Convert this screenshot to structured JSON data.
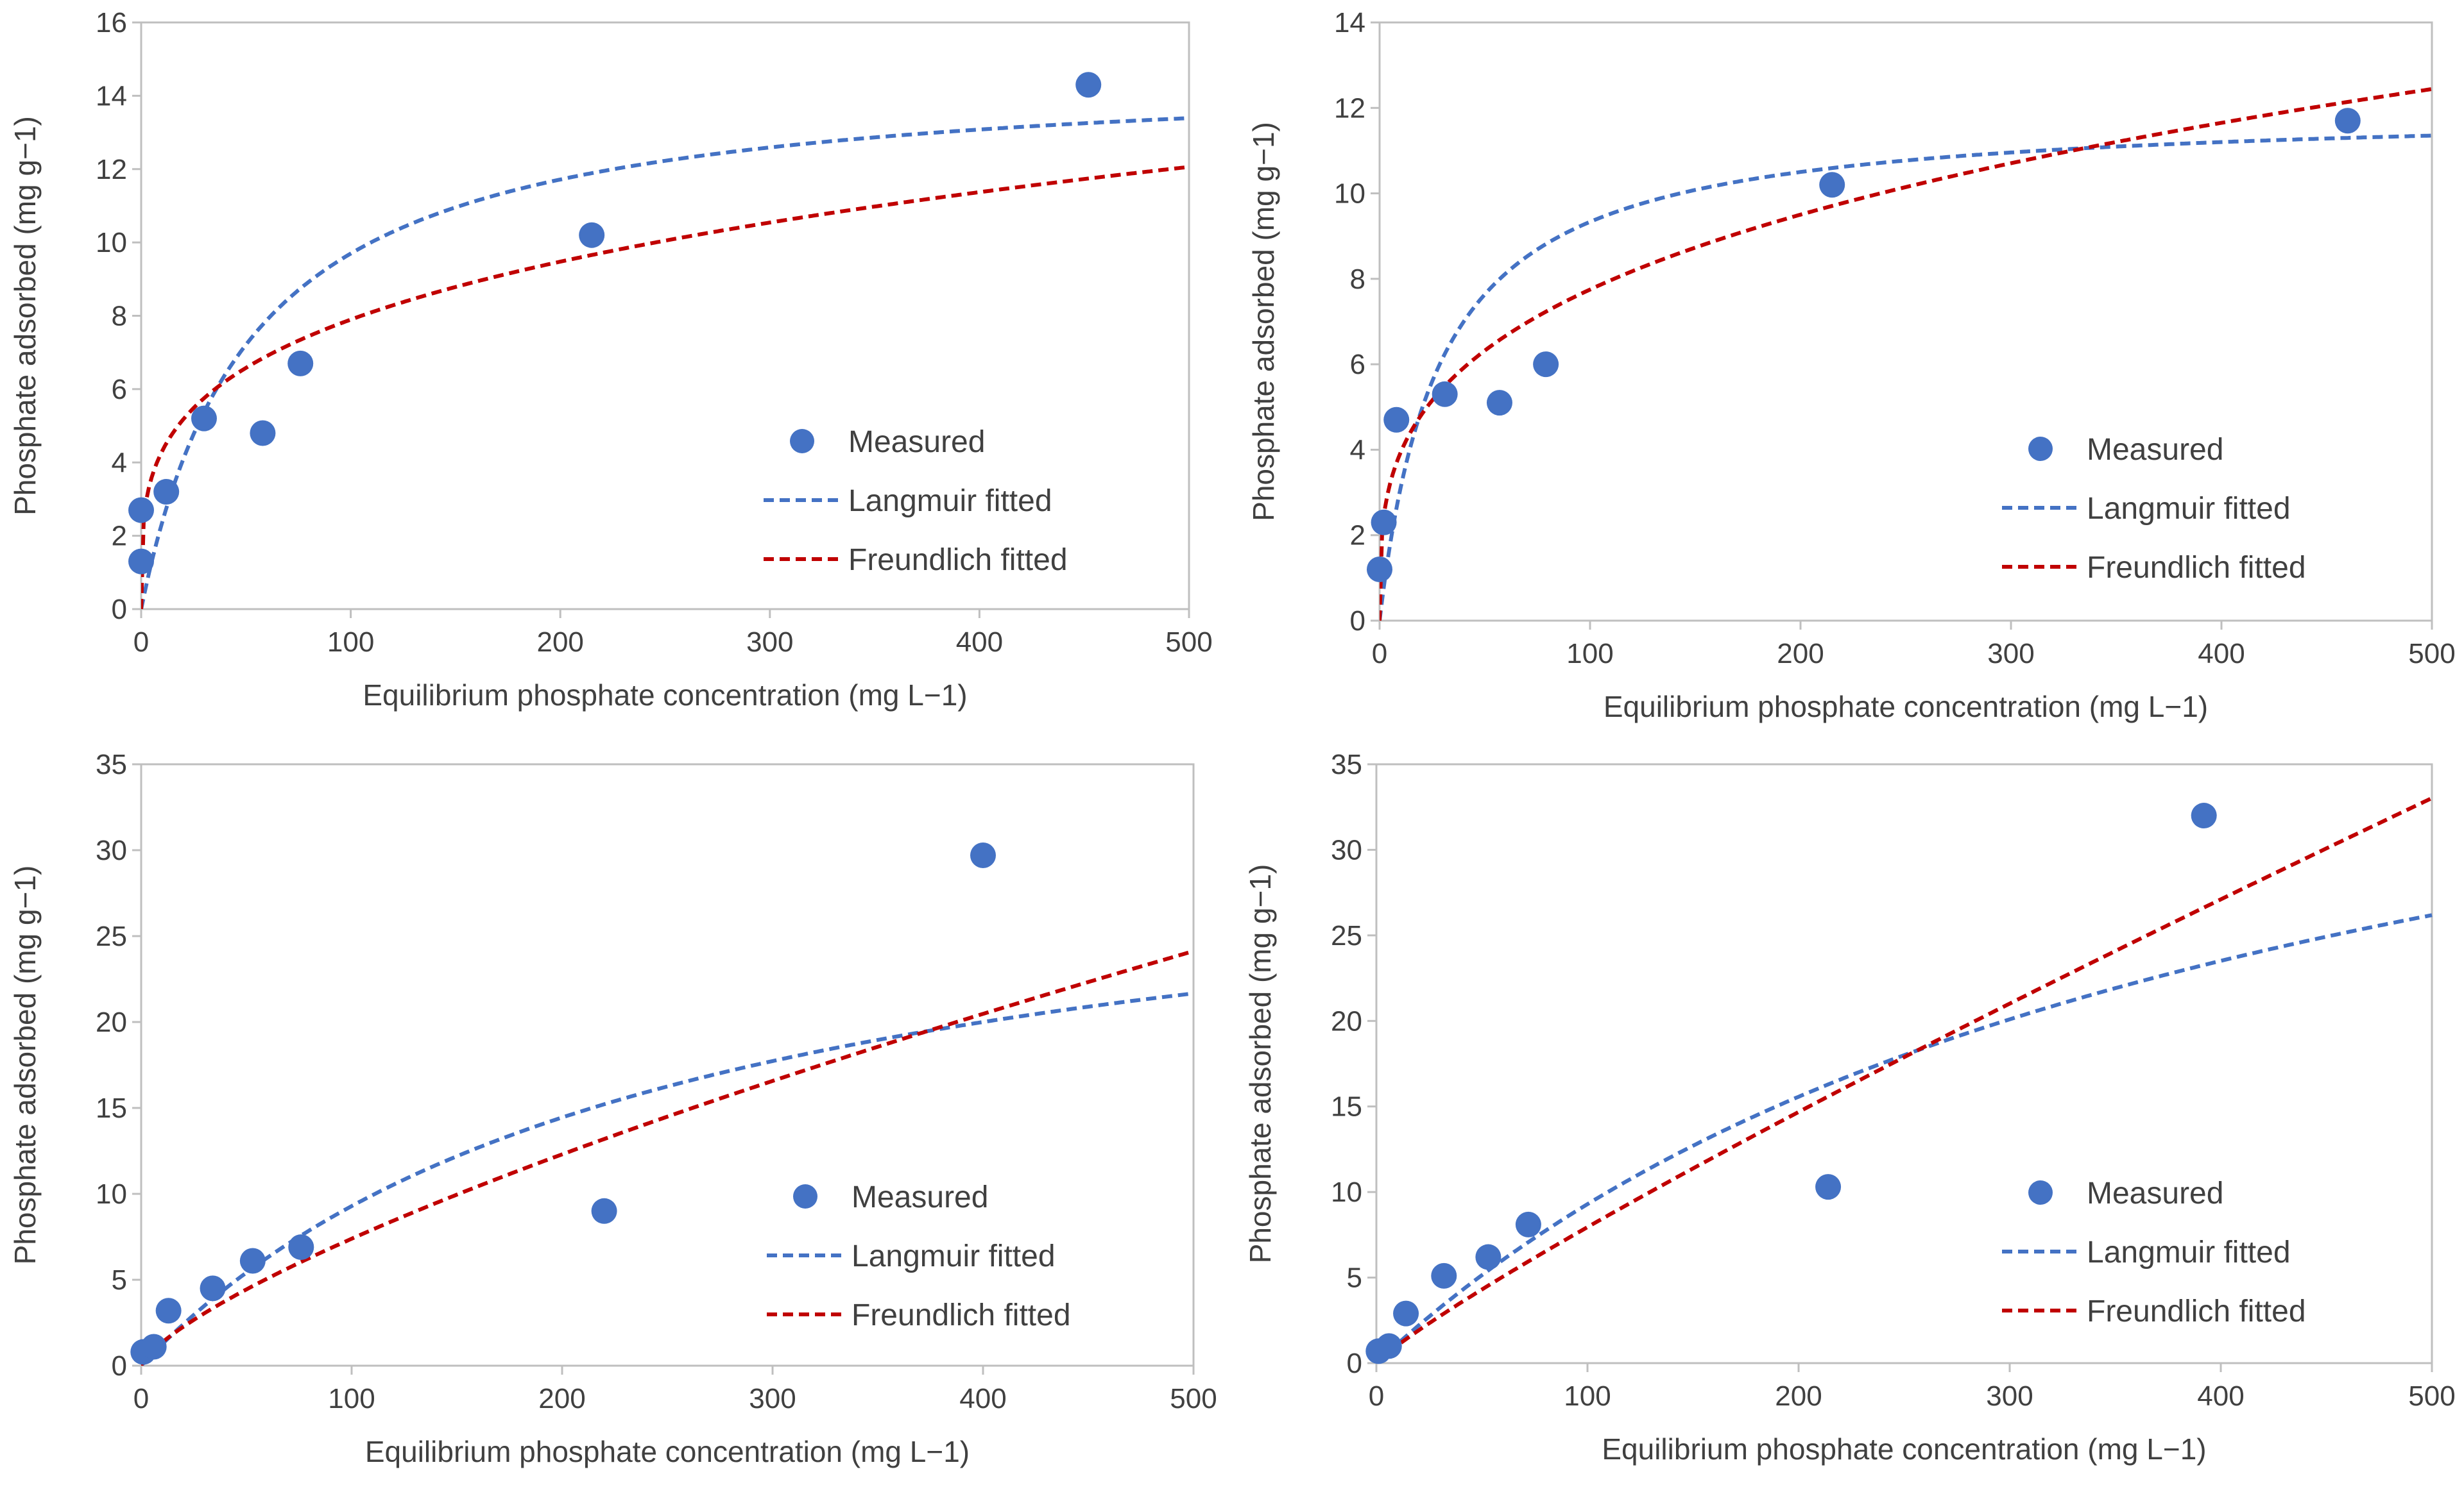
{
  "colors": {
    "measured": "#4472c4",
    "langmuir": "#4472c4",
    "freundlich": "#c00000",
    "axis": "#bfbfbf",
    "text": "#404040"
  },
  "chart_data": [
    {
      "type": "scatter",
      "xlabel": "Equilibrium phosphate concentration (mg L−1)",
      "ylabel": "Phosphate adsorbed (mg g−1)",
      "xlim": [
        0,
        500
      ],
      "ylim": [
        0,
        16
      ],
      "xticks": [
        0,
        100,
        200,
        300,
        400,
        500
      ],
      "yticks": [
        0,
        2,
        4,
        6,
        8,
        10,
        12,
        14,
        16
      ],
      "legend": {
        "position": "right-center",
        "entries": [
          "Measured",
          "Langmuir fitted",
          "Freundlich fitted"
        ]
      },
      "series": [
        {
          "name": "Measured",
          "kind": "points",
          "x": [
            0,
            0,
            12,
            30,
            58,
            76,
            215,
            452
          ],
          "y": [
            1.3,
            2.7,
            3.2,
            5.2,
            4.8,
            6.7,
            10.2,
            14.3
          ]
        },
        {
          "name": "Langmuir fitted",
          "kind": "langmuir",
          "qmax": 14.8,
          "K": 0.019
        },
        {
          "name": "Freundlich fitted",
          "kind": "freundlich",
          "Kf": 2.35,
          "n": 3.8
        }
      ]
    },
    {
      "type": "scatter",
      "xlabel": "Equilibrium phosphate concentration (mg L−1)",
      "ylabel": "Phosphate adsorbed (mg g−1)",
      "xlim": [
        0,
        500
      ],
      "ylim": [
        0,
        14
      ],
      "xticks": [
        0,
        100,
        200,
        300,
        400,
        500
      ],
      "yticks": [
        0,
        2,
        4,
        6,
        8,
        10,
        12,
        14
      ],
      "legend": {
        "position": "right-center",
        "entries": [
          "Measured",
          "Langmuir fitted",
          "Freundlich fitted"
        ]
      },
      "series": [
        {
          "name": "Measured",
          "kind": "points",
          "x": [
            0,
            2,
            8,
            31,
            57,
            79,
            215,
            460
          ],
          "y": [
            1.2,
            2.3,
            4.7,
            5.3,
            5.1,
            6.0,
            10.2,
            11.7
          ]
        },
        {
          "name": "Langmuir fitted",
          "kind": "langmuir",
          "qmax": 12.0,
          "K": 0.035
        },
        {
          "name": "Freundlich fitted",
          "kind": "freundlich",
          "Kf": 2.0,
          "n": 3.4
        }
      ]
    },
    {
      "type": "scatter",
      "xlabel": "Equilibrium phosphate concentration (mg L−1)",
      "ylabel": "Phosphate adsorbed (mg g−1)",
      "xlim": [
        0,
        500
      ],
      "ylim": [
        0,
        35
      ],
      "xticks": [
        0,
        100,
        200,
        300,
        400,
        500
      ],
      "yticks": [
        0,
        5,
        10,
        15,
        20,
        25,
        30,
        35
      ],
      "legend": {
        "position": "bottom-right",
        "entries": [
          "Measured",
          "Langmuir fitted",
          "Freundlich fitted"
        ]
      },
      "series": [
        {
          "name": "Measured",
          "kind": "points",
          "x": [
            1,
            6,
            13,
            34,
            53,
            76,
            220,
            400
          ],
          "y": [
            0.8,
            1.1,
            3.2,
            4.5,
            6.1,
            6.9,
            9.0,
            29.7
          ]
        },
        {
          "name": "Langmuir fitted",
          "kind": "langmuir",
          "qmax": 32.5,
          "K": 0.004
        },
        {
          "name": "Freundlich fitted",
          "kind": "freundlich",
          "Kf": 0.25,
          "n": 1.36
        }
      ]
    },
    {
      "type": "scatter",
      "xlabel": "Equilibrium phosphate concentration (mg L−1)",
      "ylabel": "Phosphate adsorbed (mg g−1)",
      "xlim": [
        0,
        500
      ],
      "ylim": [
        0,
        35
      ],
      "xticks": [
        0,
        100,
        200,
        300,
        400,
        500
      ],
      "yticks": [
        0,
        5,
        10,
        15,
        20,
        25,
        30,
        35
      ],
      "legend": {
        "position": "bottom-right",
        "entries": [
          "Measured",
          "Langmuir fitted",
          "Freundlich fitted"
        ]
      },
      "series": [
        {
          "name": "Measured",
          "kind": "points",
          "x": [
            1,
            6,
            14,
            32,
            53,
            72,
            214,
            392
          ],
          "y": [
            0.7,
            1.0,
            2.9,
            5.1,
            6.2,
            8.1,
            10.3,
            32.0
          ]
        },
        {
          "name": "Langmuir fitted",
          "kind": "langmuir",
          "qmax": 48.0,
          "K": 0.0024
        },
        {
          "name": "Freundlich fitted",
          "kind": "freundlich",
          "Kf": 0.135,
          "n": 1.13
        }
      ]
    }
  ]
}
